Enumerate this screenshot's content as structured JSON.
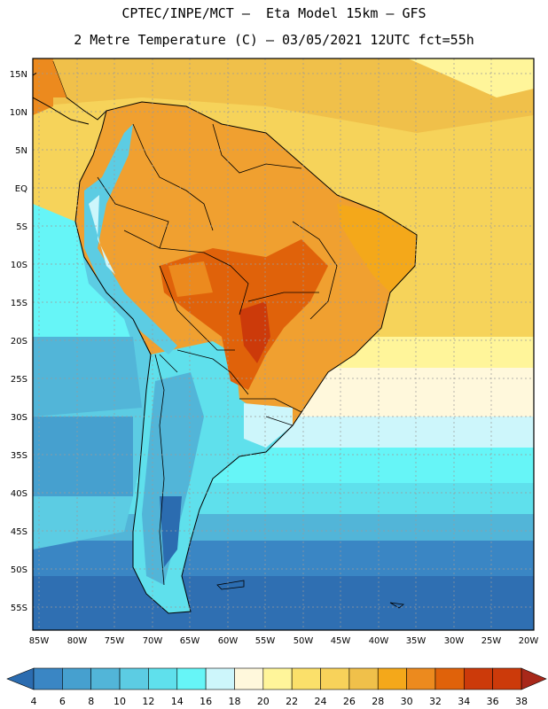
{
  "header": {
    "title_line1": "CPTEC/INPE/MCT –  Eta Model 15km – GFS",
    "title_line2": "2 Metre Temperature (C) – 03/05/2021 12UTC fct=55h"
  },
  "map": {
    "lat_labels": [
      "15N",
      "10N",
      "5N",
      "EQ",
      "5S",
      "10S",
      "15S",
      "20S",
      "25S",
      "30S",
      "35S",
      "40S",
      "45S",
      "50S",
      "55S"
    ],
    "lon_labels": [
      "85W",
      "80W",
      "75W",
      "70W",
      "65W",
      "60W",
      "55W",
      "50W",
      "45W",
      "40W",
      "35W",
      "30W",
      "25W",
      "20W"
    ]
  },
  "colorbar": {
    "labels": [
      "4",
      "6",
      "8",
      "10",
      "12",
      "14",
      "16",
      "18",
      "20",
      "22",
      "24",
      "26",
      "28",
      "30",
      "32",
      "34",
      "36",
      "38"
    ],
    "colors": [
      "#2b6cb0",
      "#3a86c4",
      "#46a0cf",
      "#52b5d8",
      "#5ccce3",
      "#5fe0ec",
      "#66f5f7",
      "#cdf6fb",
      "#fff8dc",
      "#fff59a",
      "#fbe06a",
      "#f8d25a",
      "#f0c04a",
      "#f4a81a",
      "#ec8a1e",
      "#e0620a",
      "#cc3a0a",
      "#a8281a"
    ]
  }
}
